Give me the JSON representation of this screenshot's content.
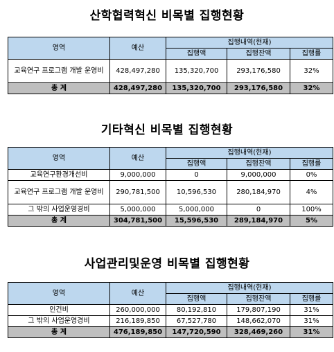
{
  "sections": [
    {
      "title": "산학협력혁신 비목별 집행현황",
      "headers": {
        "area": "영역",
        "budget": "예산",
        "group": "집행내역(현재)",
        "exec": "집행액",
        "balance": "집행잔액",
        "rate": "집행률"
      },
      "rows": [
        {
          "area": "교육연구 프로그램 개발 운영비",
          "budget": "428,497,280",
          "exec": "135,320,700",
          "balance": "293,176,580",
          "rate": "32%"
        }
      ],
      "total": {
        "area": "총 계",
        "budget": "428,497,280",
        "exec": "135,320,700",
        "balance": "293,176,580",
        "rate": "32%"
      }
    },
    {
      "title": "기타혁신 비목별 집행현황",
      "headers": {
        "area": "영역",
        "budget": "예산",
        "group": "집행내역(현재)",
        "exec": "집행액",
        "balance": "집행잔액",
        "rate": "집행률"
      },
      "rows": [
        {
          "area": "교육연구환경개선비",
          "budget": "9,000,000",
          "exec": "0",
          "balance": "9,000,000",
          "rate": "0%"
        },
        {
          "area": "교육연구 프로그램 개발 운영비",
          "budget": "290,781,500",
          "exec": "10,596,530",
          "balance": "280,184,970",
          "rate": "4%"
        },
        {
          "area": "그 밖의 사업운영경비",
          "budget": "5,000,000",
          "exec": "5,000,000",
          "balance": "0",
          "rate": "100%"
        }
      ],
      "total": {
        "area": "총 계",
        "budget": "304,781,500",
        "exec": "15,596,530",
        "balance": "289,184,970",
        "rate": "5%"
      }
    },
    {
      "title": "사업관리및운영 비목별 집행현황",
      "headers": {
        "area": "영역",
        "budget": "예산",
        "group": "집행내역(현재)",
        "exec": "집행액",
        "balance": "집행잔액",
        "rate": "집행률"
      },
      "rows": [
        {
          "area": "인건비",
          "budget": "260,000,000",
          "exec": "80,192,810",
          "balance": "179,807,190",
          "rate": "31%"
        },
        {
          "area": "그 밖의 사업운영경비",
          "budget": "216,189,850",
          "exec": "67,527,780",
          "balance": "148,662,070",
          "rate": "31%"
        }
      ],
      "total": {
        "area": "총 계",
        "budget": "476,189,850",
        "exec": "147,720,590",
        "balance": "328,469,260",
        "rate": "31%"
      }
    }
  ]
}
